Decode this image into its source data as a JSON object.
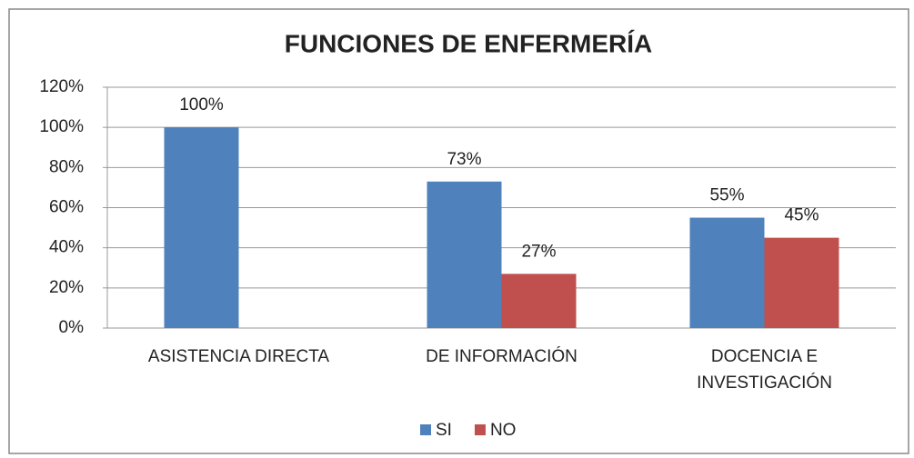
{
  "chart_data": {
    "type": "bar",
    "title": "FUNCIONES DE ENFERMERÍA",
    "categories": [
      "ASISTENCIA DIRECTA",
      "DE INFORMACIÓN",
      "DOCENCIA E INVESTIGACIÓN"
    ],
    "series": [
      {
        "name": "SI",
        "color": "#4f81bd",
        "values": [
          100,
          73,
          55
        ],
        "value_labels": [
          "100%",
          "73%",
          "55%"
        ]
      },
      {
        "name": "NO",
        "color": "#c0504d",
        "values": [
          null,
          27,
          45
        ],
        "value_labels": [
          null,
          "27%",
          "45%"
        ]
      }
    ],
    "ylim": [
      0,
      120
    ],
    "yticks": [
      {
        "value": 0,
        "label": "0%"
      },
      {
        "value": 20,
        "label": "20%"
      },
      {
        "value": 40,
        "label": "40%"
      },
      {
        "value": 60,
        "label": "60%"
      },
      {
        "value": 80,
        "label": "80%"
      },
      {
        "value": 100,
        "label": "100%"
      },
      {
        "value": 120,
        "label": "120%"
      }
    ],
    "grid": true,
    "legend": "bottom"
  }
}
